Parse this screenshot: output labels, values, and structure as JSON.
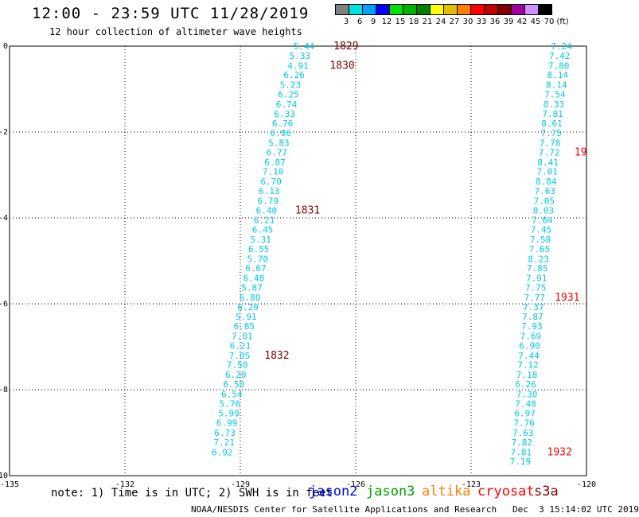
{
  "header": {
    "title": "12:00 - 23:59 UTC 11/28/2019",
    "subtitle": "12 hour collection of altimeter wave heights"
  },
  "color_scale": {
    "unit": "(ft)",
    "bins": [
      {
        "label": "3",
        "color": "#808080"
      },
      {
        "label": "6",
        "color": "#00e0e0"
      },
      {
        "label": "9",
        "color": "#00a0ff"
      },
      {
        "label": "12",
        "color": "#0000ff"
      },
      {
        "label": "15",
        "color": "#00e000"
      },
      {
        "label": "18",
        "color": "#00b000"
      },
      {
        "label": "21",
        "color": "#008000"
      },
      {
        "label": "24",
        "color": "#ffff00"
      },
      {
        "label": "27",
        "color": "#e0c000"
      },
      {
        "label": "30",
        "color": "#ff8000"
      },
      {
        "label": "33",
        "color": "#ff0000"
      },
      {
        "label": "36",
        "color": "#c00000"
      },
      {
        "label": "39",
        "color": "#800000"
      },
      {
        "label": "42",
        "color": "#a000a0"
      },
      {
        "label": "45",
        "color": "#d090ff"
      },
      {
        "label": "70",
        "color": "#000000"
      }
    ]
  },
  "map": {
    "lon_ticks": [
      "-135",
      "-132",
      "-129",
      "-126",
      "-123",
      "-120"
    ],
    "lat_ticks": [
      "0",
      "-2",
      "-4",
      "-6",
      "-8",
      "-10"
    ],
    "lon_range": [
      -135,
      -120
    ],
    "lat_range": [
      -10,
      0
    ],
    "grid": true
  },
  "tracks": [
    {
      "name": "jason2",
      "value_color": "#00c8e8",
      "points": [
        {
          "lat": 0.0,
          "lon": -127.35,
          "v": "5.44"
        },
        {
          "lat": -0.22,
          "lon": -127.45,
          "v": "5.33"
        },
        {
          "lat": -0.45,
          "lon": -127.5,
          "v": "4.91"
        },
        {
          "lat": -0.67,
          "lon": -127.6,
          "v": "6.26"
        },
        {
          "lat": -0.9,
          "lon": -127.7,
          "v": "5.23"
        },
        {
          "lat": -1.12,
          "lon": -127.75,
          "v": "6.25"
        },
        {
          "lat": -1.35,
          "lon": -127.8,
          "v": "6.74"
        },
        {
          "lat": -1.57,
          "lon": -127.85,
          "v": "6.33"
        },
        {
          "lat": -1.8,
          "lon": -127.9,
          "v": "6.76"
        },
        {
          "lat": -2.02,
          "lon": -127.95,
          "v": "6.06"
        },
        {
          "lat": -2.25,
          "lon": -128.0,
          "v": "5.83"
        },
        {
          "lat": -2.47,
          "lon": -128.05,
          "v": "6.77"
        },
        {
          "lat": -2.7,
          "lon": -128.1,
          "v": "6.87"
        },
        {
          "lat": -2.92,
          "lon": -128.15,
          "v": "7.10"
        },
        {
          "lat": -3.15,
          "lon": -128.2,
          "v": "6.70"
        },
        {
          "lat": -3.37,
          "lon": -128.25,
          "v": "6.13"
        },
        {
          "lat": -3.6,
          "lon": -128.28,
          "v": "6.79"
        },
        {
          "lat": -3.82,
          "lon": -128.32,
          "v": "6.40"
        },
        {
          "lat": -4.05,
          "lon": -128.38,
          "v": "6.21"
        },
        {
          "lat": -4.27,
          "lon": -128.42,
          "v": "6.45"
        },
        {
          "lat": -4.5,
          "lon": -128.47,
          "v": "5.31"
        },
        {
          "lat": -4.72,
          "lon": -128.52,
          "v": "6.55"
        },
        {
          "lat": -4.95,
          "lon": -128.55,
          "v": "5.70"
        },
        {
          "lat": -5.17,
          "lon": -128.6,
          "v": "6.67"
        },
        {
          "lat": -5.4,
          "lon": -128.65,
          "v": "6.48"
        },
        {
          "lat": -5.62,
          "lon": -128.7,
          "v": "5.87"
        },
        {
          "lat": -5.85,
          "lon": -128.75,
          "v": "6.80"
        },
        {
          "lat": -6.07,
          "lon": -128.8,
          "v": "6.29"
        },
        {
          "lat": -6.3,
          "lon": -128.85,
          "v": "5.91"
        },
        {
          "lat": -6.52,
          "lon": -128.9,
          "v": "6.85"
        },
        {
          "lat": -6.75,
          "lon": -128.95,
          "v": "7.01"
        },
        {
          "lat": -6.97,
          "lon": -129.0,
          "v": "6.21"
        },
        {
          "lat": -7.2,
          "lon": -129.02,
          "v": "7.05"
        },
        {
          "lat": -7.42,
          "lon": -129.08,
          "v": "7.50"
        },
        {
          "lat": -7.65,
          "lon": -129.12,
          "v": "6.20"
        },
        {
          "lat": -7.87,
          "lon": -129.17,
          "v": "6.50"
        },
        {
          "lat": -8.1,
          "lon": -129.22,
          "v": "6.54"
        },
        {
          "lat": -8.32,
          "lon": -129.27,
          "v": "5.76"
        },
        {
          "lat": -8.55,
          "lon": -129.3,
          "v": "5.99"
        },
        {
          "lat": -8.77,
          "lon": -129.35,
          "v": "6.99"
        },
        {
          "lat": -9.0,
          "lon": -129.4,
          "v": "6.73"
        },
        {
          "lat": -9.22,
          "lon": -129.42,
          "v": "7.21"
        },
        {
          "lat": -9.45,
          "lon": -129.47,
          "v": "6.92"
        }
      ],
      "times": [
        {
          "lat": 0.0,
          "lon": -126.25,
          "t": "1829",
          "color": "#800000"
        },
        {
          "lat": -0.45,
          "lon": -126.35,
          "t": "1830",
          "color": "#800000"
        },
        {
          "lat": -3.82,
          "lon": -127.25,
          "t": "1831",
          "color": "#800000"
        },
        {
          "lat": -7.2,
          "lon": -128.05,
          "t": "1832",
          "color": "#800000"
        }
      ]
    },
    {
      "name": "jason3",
      "value_color": "#00c8e8",
      "points": [
        {
          "lat": 0.0,
          "lon": -120.65,
          "v": "7.24"
        },
        {
          "lat": -0.22,
          "lon": -120.7,
          "v": "7.42"
        },
        {
          "lat": -0.45,
          "lon": -120.72,
          "v": "7.80"
        },
        {
          "lat": -0.67,
          "lon": -120.75,
          "v": "8.14"
        },
        {
          "lat": -0.9,
          "lon": -120.78,
          "v": "8.14"
        },
        {
          "lat": -1.12,
          "lon": -120.82,
          "v": "7.54"
        },
        {
          "lat": -1.35,
          "lon": -120.85,
          "v": "8.33"
        },
        {
          "lat": -1.57,
          "lon": -120.88,
          "v": "7.81"
        },
        {
          "lat": -1.8,
          "lon": -120.9,
          "v": "8.61"
        },
        {
          "lat": -2.02,
          "lon": -120.92,
          "v": "7.75"
        },
        {
          "lat": -2.25,
          "lon": -120.95,
          "v": "7.78"
        },
        {
          "lat": -2.47,
          "lon": -120.97,
          "v": "7.72"
        },
        {
          "lat": -2.7,
          "lon": -121.0,
          "v": "8.41"
        },
        {
          "lat": -2.92,
          "lon": -121.02,
          "v": "7.01"
        },
        {
          "lat": -3.15,
          "lon": -121.05,
          "v": "8.84"
        },
        {
          "lat": -3.37,
          "lon": -121.08,
          "v": "7.63"
        },
        {
          "lat": -3.6,
          "lon": -121.1,
          "v": "7.05"
        },
        {
          "lat": -3.82,
          "lon": -121.12,
          "v": "8.03"
        },
        {
          "lat": -4.05,
          "lon": -121.15,
          "v": "7.64"
        },
        {
          "lat": -4.27,
          "lon": -121.18,
          "v": "7.45"
        },
        {
          "lat": -4.5,
          "lon": -121.2,
          "v": "7.58"
        },
        {
          "lat": -4.72,
          "lon": -121.22,
          "v": "7.65"
        },
        {
          "lat": -4.95,
          "lon": -121.25,
          "v": "8.23"
        },
        {
          "lat": -5.17,
          "lon": -121.28,
          "v": "7.85"
        },
        {
          "lat": -5.4,
          "lon": -121.3,
          "v": "7.91"
        },
        {
          "lat": -5.62,
          "lon": -121.32,
          "v": "7.75"
        },
        {
          "lat": -5.85,
          "lon": -121.35,
          "v": "7.77"
        },
        {
          "lat": -6.07,
          "lon": -121.38,
          "v": "7.37"
        },
        {
          "lat": -6.3,
          "lon": -121.4,
          "v": "7.87"
        },
        {
          "lat": -6.52,
          "lon": -121.42,
          "v": "7.93"
        },
        {
          "lat": -6.75,
          "lon": -121.45,
          "v": "7.69"
        },
        {
          "lat": -6.97,
          "lon": -121.48,
          "v": "6.90"
        },
        {
          "lat": -7.2,
          "lon": -121.5,
          "v": "7.44"
        },
        {
          "lat": -7.42,
          "lon": -121.52,
          "v": "7.12"
        },
        {
          "lat": -7.65,
          "lon": -121.55,
          "v": "7.18"
        },
        {
          "lat": -7.87,
          "lon": -121.58,
          "v": "6.26"
        },
        {
          "lat": -8.1,
          "lon": -121.55,
          "v": "7.30"
        },
        {
          "lat": -8.32,
          "lon": -121.58,
          "v": "7.48"
        },
        {
          "lat": -8.55,
          "lon": -121.6,
          "v": "6.97"
        },
        {
          "lat": -8.77,
          "lon": -121.62,
          "v": "7.76"
        },
        {
          "lat": -9.0,
          "lon": -121.65,
          "v": "7.63"
        },
        {
          "lat": -9.22,
          "lon": -121.68,
          "v": "7.82"
        },
        {
          "lat": -9.45,
          "lon": -121.7,
          "v": "7.81"
        },
        {
          "lat": -9.67,
          "lon": -121.72,
          "v": "7.19"
        }
      ],
      "times": [
        {
          "lat": -2.47,
          "lon": -120.15,
          "t": "19",
          "color": "#ff0000"
        },
        {
          "lat": -5.85,
          "lon": -120.5,
          "t": "1931",
          "color": "#ff0000"
        },
        {
          "lat": -9.45,
          "lon": -120.7,
          "t": "1932",
          "color": "#ff0000"
        }
      ]
    }
  ],
  "legend": {
    "note": "note: 1) Time is in UTC; 2) SWH is in feet",
    "satellites": [
      {
        "name": "jason2",
        "color": "#0000ff"
      },
      {
        "name": "jason3",
        "color": "#00a000"
      },
      {
        "name": "altika",
        "color": "#ff8000"
      },
      {
        "name": "cryosat",
        "color": "#ff0000"
      },
      {
        "name": "s3a",
        "color": "#800000"
      }
    ]
  },
  "footer": "NOAA/NESDIS Center for Satellite Applications and Research   Dec  3 15:14:02 UTC 2019"
}
